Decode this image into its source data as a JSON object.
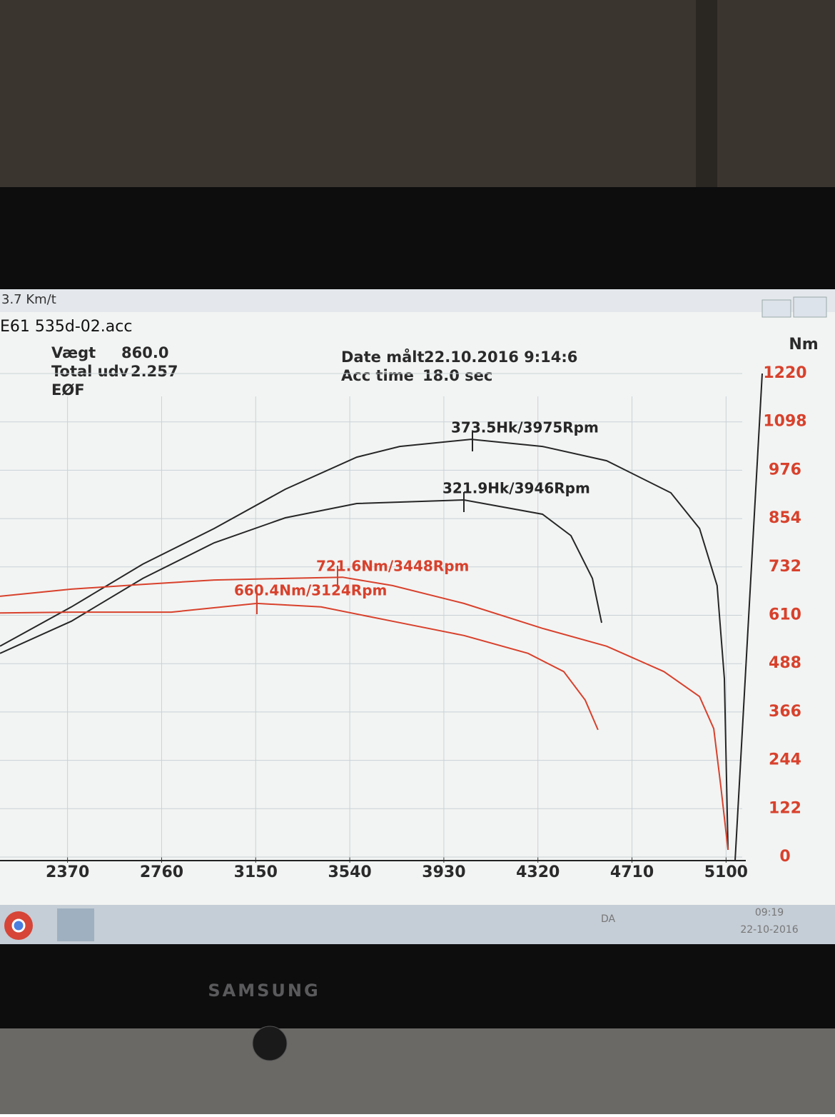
{
  "window": {
    "speed": "3.7 Km/t",
    "file": "E61 535d-02.acc",
    "weight_label": "Vægt",
    "weight": "860.0",
    "ratio_label": "Total udv",
    "ratio": "2.257",
    "mode": "EØF",
    "date_label": "Date målt",
    "date": "22.10.2016 9:14:6",
    "acc_label": "Acc time",
    "acc": "18.0 sec"
  },
  "taskbar": {
    "language": "DA",
    "time": "09:19",
    "date": "22-10-2016"
  },
  "monitor": {
    "brand": "SAMSUNG"
  },
  "chart_data": {
    "type": "line",
    "y_label": "Nm",
    "xlim": [
      2090,
      5167
    ],
    "xticks": [
      2370,
      2760,
      3150,
      3540,
      3930,
      4320,
      4710,
      5100
    ],
    "ylim": [
      0,
      1220
    ],
    "yticks": [
      0,
      122,
      244,
      366,
      488,
      610,
      732,
      854,
      976,
      1098,
      1220
    ],
    "grid": true,
    "series": [
      {
        "color": "#262626",
        "x": [
          2090,
          2386,
          2682,
          2978,
          3273,
          3569,
          3747,
          4043,
          4339,
          4605,
          4871,
          4990,
          5063,
          5093,
          5108
        ],
        "values": [
          532,
          631,
          739,
          829,
          928,
          1009,
          1036,
          1054,
          1036,
          1000,
          919,
          829,
          685,
          450,
          18
        ]
      },
      {
        "color": "#262626",
        "x": [
          2090,
          2386,
          2682,
          2978,
          3273,
          3569,
          4013,
          4339,
          4457,
          4546,
          4584
        ],
        "values": [
          514,
          595,
          703,
          793,
          856,
          892,
          901,
          865,
          811,
          703,
          591
        ]
      },
      {
        "color": "#d8412c",
        "x": [
          2090,
          2386,
          2682,
          2978,
          3273,
          3510,
          3717,
          4013,
          4339,
          4605,
          4842,
          4990,
          5049,
          5078,
          5108
        ],
        "values": [
          658,
          676,
          688,
          699,
          703,
          706,
          685,
          640,
          577,
          532,
          468,
          405,
          324,
          180,
          18
        ]
      },
      {
        "color": "#d8412c",
        "x": [
          2090,
          2386,
          2800,
          3155,
          3421,
          3717,
          4013,
          4279,
          4427,
          4516,
          4569
        ],
        "values": [
          616,
          618,
          618,
          640,
          631,
          595,
          559,
          514,
          468,
          396,
          321
        ]
      }
    ],
    "annotations": [
      {
        "text": "373.5Hk/3975Rpm",
        "color": "#262626"
      },
      {
        "text": "321.9Hk/3946Rpm",
        "color": "#262626"
      },
      {
        "text": "721.6Nm/3448Rpm",
        "color": "#d8412c"
      },
      {
        "text": "660.4Nm/3124Rpm",
        "color": "#d8412c"
      }
    ]
  }
}
